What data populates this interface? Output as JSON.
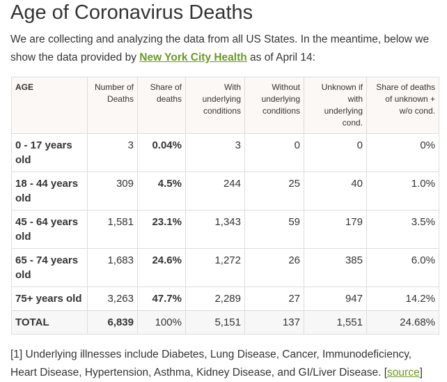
{
  "title": "Age of Coronavirus Deaths",
  "intro": {
    "before": "We are collecting and analyzing the data from all US States. In the meantime, below we show the data provided by ",
    "link": "New York City Health",
    "after": " as of April 14:"
  },
  "table": {
    "headers": [
      "AGE",
      "Number of Deaths",
      "Share of deaths",
      "With underlying conditions",
      "Without underlying conditions",
      "Unknown if with underlying cond.",
      "Share of deaths of unknown + w/o cond."
    ],
    "rows": [
      [
        "0 - 17 years old",
        "3",
        "0.04%",
        "3",
        "0",
        "0",
        "0%"
      ],
      [
        "18 - 44 years old",
        "309",
        "4.5%",
        "244",
        "25",
        "40",
        "1.0%"
      ],
      [
        "45 - 64 years old",
        "1,581",
        "23.1%",
        "1,343",
        "59",
        "179",
        "3.5%"
      ],
      [
        "65 - 74 years old",
        "1,683",
        "24.6%",
        "1,272",
        "26",
        "385",
        "6.0%"
      ],
      [
        "75+ years old",
        "3,263",
        "47.7%",
        "2,289",
        "27",
        "947",
        "14.2%"
      ]
    ],
    "total": [
      "TOTAL",
      "6,839",
      "100%",
      "5,151",
      "137",
      "1,551",
      "24.68%"
    ]
  },
  "footnote": {
    "text": "[1] Underlying illnesses include Diabetes, Lung Disease, Cancer, Immunodeficiency, Heart Disease, Hypertension, Asthma, Kidney Disease, and GI/Liver Disease. [",
    "link": "source",
    "close": "]"
  }
}
